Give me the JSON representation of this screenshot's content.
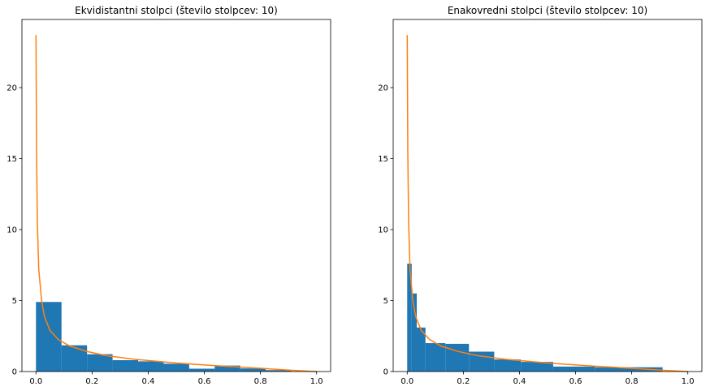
{
  "chart_data": [
    {
      "type": "bar",
      "title": "Ekvidistantni stolpci (število stolpcev: 10)",
      "xlabel": "",
      "ylabel": "",
      "xlim": [
        -0.05,
        1.05
      ],
      "ylim": [
        0,
        24.8
      ],
      "xticks": [
        0.0,
        0.2,
        0.4,
        0.6,
        0.8,
        1.0
      ],
      "xtick_labels": [
        "0.0",
        "0.2",
        "0.4",
        "0.6",
        "0.8",
        "1.0"
      ],
      "yticks": [
        0,
        5,
        10,
        15,
        20
      ],
      "ytick_labels": [
        "0",
        "5",
        "10",
        "15",
        "20"
      ],
      "grid": false,
      "bin_edges": [
        0.0,
        0.091,
        0.182,
        0.273,
        0.364,
        0.455,
        0.546,
        0.637,
        0.728,
        0.819,
        0.91
      ],
      "values": [
        4.9,
        1.85,
        1.22,
        0.8,
        0.72,
        0.55,
        0.2,
        0.42,
        0.22,
        0.1
      ],
      "bar_color": "#1f77b4",
      "curve": {
        "color": "#ff7f0e",
        "x": [
          0.0,
          0.002,
          0.005,
          0.01,
          0.02,
          0.03,
          0.05,
          0.08,
          0.12,
          0.18,
          0.25,
          0.35,
          0.5,
          0.65,
          0.8,
          0.9,
          1.0
        ],
        "y": [
          23.7,
          15.5,
          10.5,
          7.2,
          5.0,
          3.9,
          2.9,
          2.25,
          1.8,
          1.42,
          1.12,
          0.86,
          0.6,
          0.4,
          0.23,
          0.1,
          0.0
        ]
      }
    },
    {
      "type": "bar",
      "title": "Enakovredni stolpci (število stolpcev: 10)",
      "xlabel": "",
      "ylabel": "",
      "xlim": [
        -0.05,
        1.05
      ],
      "ylim": [
        0,
        24.8
      ],
      "xticks": [
        0.0,
        0.2,
        0.4,
        0.6,
        0.8,
        1.0
      ],
      "xtick_labels": [
        "0.0",
        "0.2",
        "0.4",
        "0.6",
        "0.8",
        "1.0"
      ],
      "yticks": [
        0,
        5,
        10,
        15,
        20
      ],
      "ytick_labels": [
        "0",
        "5",
        "10",
        "15",
        "20"
      ],
      "grid": false,
      "bin_edges": [
        0.0,
        0.016,
        0.034,
        0.065,
        0.136,
        0.22,
        0.31,
        0.405,
        0.52,
        0.67,
        0.91
      ],
      "values": [
        7.6,
        5.5,
        3.1,
        2.0,
        1.95,
        1.4,
        0.85,
        0.68,
        0.35,
        0.3
      ],
      "bar_color": "#1f77b4",
      "curve": {
        "color": "#ff7f0e",
        "x": [
          0.0,
          0.002,
          0.005,
          0.01,
          0.02,
          0.03,
          0.05,
          0.08,
          0.12,
          0.18,
          0.25,
          0.35,
          0.5,
          0.65,
          0.8,
          0.9,
          1.0
        ],
        "y": [
          23.7,
          15.5,
          10.5,
          7.2,
          5.0,
          3.9,
          2.9,
          2.25,
          1.8,
          1.42,
          1.12,
          0.86,
          0.6,
          0.4,
          0.23,
          0.1,
          0.0
        ]
      }
    }
  ]
}
